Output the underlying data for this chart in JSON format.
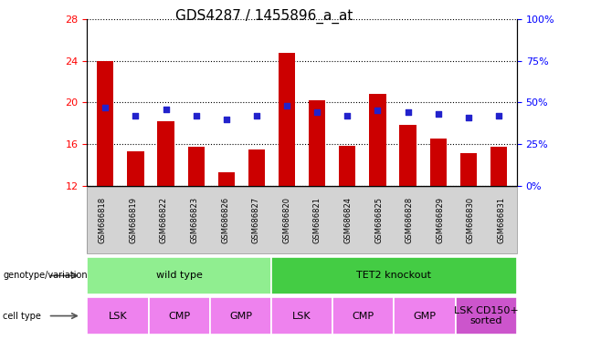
{
  "title": "GDS4287 / 1455896_a_at",
  "samples": [
    "GSM686818",
    "GSM686819",
    "GSM686822",
    "GSM686823",
    "GSM686826",
    "GSM686827",
    "GSM686820",
    "GSM686821",
    "GSM686824",
    "GSM686825",
    "GSM686828",
    "GSM686829",
    "GSM686830",
    "GSM686831"
  ],
  "bar_values": [
    24.0,
    15.3,
    18.2,
    15.7,
    13.3,
    15.5,
    24.8,
    20.2,
    15.8,
    20.8,
    17.8,
    16.5,
    15.1,
    15.7
  ],
  "dot_values_pct": [
    47,
    42,
    46,
    42,
    40,
    42,
    48,
    44,
    42,
    45,
    44,
    43,
    41,
    42
  ],
  "ymin": 12,
  "ymax": 28,
  "yticks_left": [
    12,
    16,
    20,
    24,
    28
  ],
  "yticks_right": [
    0,
    25,
    50,
    75,
    100
  ],
  "bar_color": "#cc0000",
  "dot_color": "#2222cc",
  "bar_width": 0.55,
  "genotype_groups": [
    {
      "label": "wild type",
      "start": 0,
      "end": 6,
      "color": "#90ee90"
    },
    {
      "label": "TET2 knockout",
      "start": 6,
      "end": 14,
      "color": "#44cc44"
    }
  ],
  "cell_type_groups": [
    {
      "label": "LSK",
      "start": 0,
      "end": 2,
      "color": "#ee82ee"
    },
    {
      "label": "CMP",
      "start": 2,
      "end": 4,
      "color": "#ee82ee"
    },
    {
      "label": "GMP",
      "start": 4,
      "end": 6,
      "color": "#ee82ee"
    },
    {
      "label": "LSK",
      "start": 6,
      "end": 8,
      "color": "#ee82ee"
    },
    {
      "label": "CMP",
      "start": 8,
      "end": 10,
      "color": "#ee82ee"
    },
    {
      "label": "GMP",
      "start": 10,
      "end": 12,
      "color": "#ee82ee"
    },
    {
      "label": "LSK CD150+\nsorted",
      "start": 12,
      "end": 14,
      "color": "#cc55cc"
    }
  ],
  "title_fontsize": 11,
  "tick_fontsize": 8,
  "sample_fontsize": 6,
  "annot_fontsize": 8,
  "legend_fontsize": 8
}
